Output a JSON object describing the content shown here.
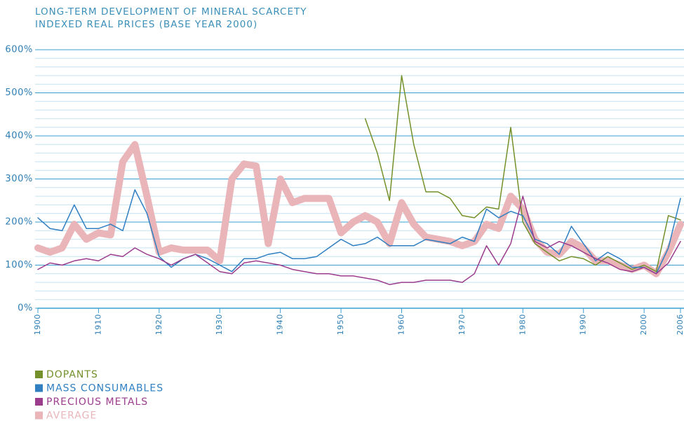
{
  "chart_data": {
    "type": "line",
    "title": "LONG-TERM DEVELOPMENT OF MINERAL SCARCETY",
    "subtitle": "INDEXED REAL PRICES (BASE YEAR 2000)",
    "x": [
      1900,
      1902,
      1904,
      1906,
      1908,
      1910,
      1912,
      1914,
      1916,
      1918,
      1920,
      1922,
      1924,
      1926,
      1928,
      1930,
      1932,
      1934,
      1936,
      1938,
      1940,
      1942,
      1944,
      1946,
      1948,
      1950,
      1952,
      1954,
      1956,
      1958,
      1960,
      1962,
      1964,
      1966,
      1968,
      1970,
      1972,
      1974,
      1976,
      1978,
      1980,
      1982,
      1984,
      1986,
      1988,
      1990,
      1992,
      1994,
      1996,
      1998,
      2000,
      2002,
      2004,
      2006
    ],
    "xlim": [
      1900,
      2006
    ],
    "xticks": [
      1900,
      1910,
      1920,
      1930,
      1940,
      1950,
      1960,
      1970,
      1980,
      1990,
      2000,
      2006
    ],
    "ylim": [
      0,
      600
    ],
    "yticks": [
      {
        "value": 0,
        "label": "0%"
      },
      {
        "value": 100,
        "label": "100%"
      },
      {
        "value": 200,
        "label": "200%"
      },
      {
        "value": 300,
        "label": "300%"
      },
      {
        "value": 400,
        "label": "400%"
      },
      {
        "value": 500,
        "label": "500%"
      },
      {
        "value": 600,
        "label": "600%"
      }
    ],
    "yminor_ticks": [
      20,
      40,
      60,
      80,
      120,
      140,
      160,
      180,
      220,
      240,
      260,
      280,
      320,
      340,
      360,
      380,
      420,
      440,
      460,
      480,
      520,
      540,
      560,
      580
    ],
    "grid": true,
    "legend": "bottom-left",
    "series": [
      {
        "name": "DOPANTS",
        "color": "#73902a",
        "width": 1.5,
        "values": [
          null,
          null,
          null,
          null,
          null,
          null,
          null,
          null,
          null,
          null,
          null,
          null,
          null,
          null,
          null,
          null,
          null,
          null,
          null,
          null,
          null,
          null,
          null,
          null,
          null,
          null,
          null,
          440,
          360,
          250,
          540,
          380,
          270,
          270,
          255,
          215,
          210,
          235,
          230,
          420,
          200,
          150,
          130,
          110,
          120,
          115,
          100,
          120,
          105,
          90,
          100,
          85,
          215,
          205
        ]
      },
      {
        "name": "MASS CONSUMABLES",
        "color": "#2f7fc1",
        "width": 1.5,
        "values": [
          210,
          185,
          180,
          240,
          185,
          185,
          195,
          180,
          275,
          220,
          120,
          95,
          115,
          125,
          115,
          100,
          85,
          115,
          115,
          125,
          130,
          115,
          115,
          120,
          140,
          160,
          145,
          150,
          165,
          145,
          145,
          145,
          160,
          155,
          150,
          165,
          155,
          230,
          210,
          225,
          215,
          160,
          150,
          125,
          190,
          150,
          110,
          130,
          115,
          95,
          95,
          80,
          140,
          255
        ]
      },
      {
        "name": "PRECIOUS METALS",
        "color": "#9b3c8c",
        "width": 1.5,
        "values": [
          90,
          105,
          100,
          110,
          115,
          110,
          125,
          120,
          140,
          125,
          115,
          100,
          115,
          125,
          105,
          85,
          80,
          105,
          110,
          105,
          100,
          90,
          85,
          80,
          80,
          75,
          75,
          70,
          65,
          55,
          60,
          60,
          65,
          65,
          65,
          60,
          80,
          145,
          100,
          150,
          260,
          155,
          140,
          155,
          145,
          130,
          115,
          105,
          90,
          85,
          95,
          80,
          105,
          155
        ]
      },
      {
        "name": "AVERAGE",
        "color": "#e9b5b9",
        "width": 10,
        "values": [
          140,
          130,
          140,
          195,
          160,
          175,
          170,
          340,
          380,
          260,
          130,
          140,
          135,
          135,
          135,
          110,
          300,
          335,
          330,
          150,
          300,
          245,
          255,
          255,
          255,
          175,
          200,
          215,
          200,
          150,
          245,
          195,
          165,
          160,
          155,
          145,
          155,
          195,
          185,
          260,
          230,
          160,
          130,
          125,
          155,
          140,
          110,
          110,
          100,
          90,
          100,
          80,
          130,
          195
        ]
      }
    ]
  }
}
